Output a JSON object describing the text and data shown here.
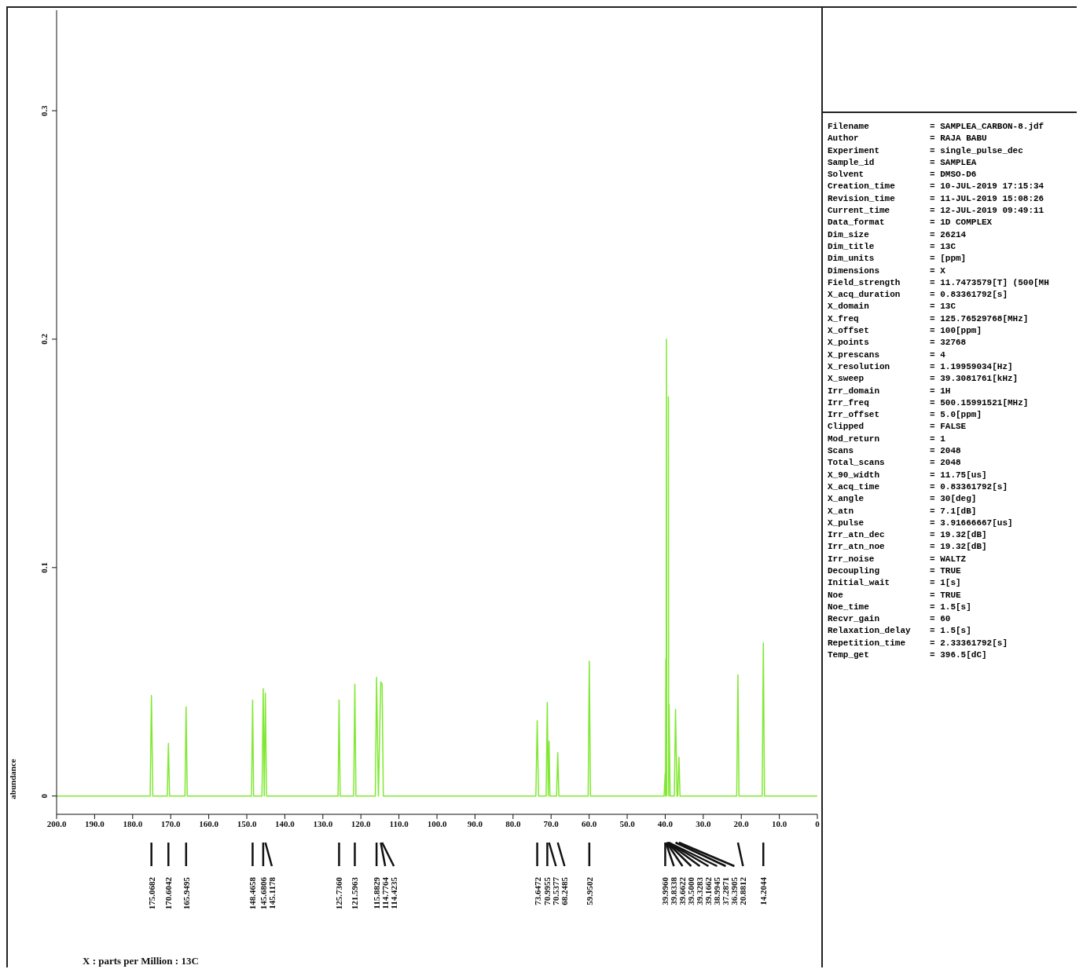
{
  "chart_data": {
    "type": "line",
    "ylabel": "abundance",
    "x": [
      200,
      175.4,
      175.0682,
      174.7,
      170.9,
      170.6042,
      170.3,
      166.25,
      165.9495,
      165.65,
      148.75,
      148.4658,
      148.2,
      146.0,
      145.6806,
      145.4,
      145.1178,
      144.8,
      126.0,
      125.736,
      125.45,
      121.9,
      121.5963,
      121.3,
      116.2,
      115.8829,
      115.4,
      114.7764,
      114.4235,
      114.1,
      74.0,
      73.6472,
      73.3,
      71.3,
      70.9955,
      70.75,
      70.5377,
      70.3,
      68.55,
      68.2485,
      67.95,
      60.25,
      59.9502,
      59.65,
      40.3,
      39.996,
      39.91,
      39.8338,
      39.75,
      39.6622,
      39.58,
      39.5,
      39.3283,
      39.1662,
      39.08,
      38.9945,
      38.7,
      37.6,
      37.2871,
      36.9,
      36.7,
      36.3905,
      36.1,
      21.2,
      20.8812,
      20.6,
      14.5,
      14.2044,
      13.9,
      0
    ],
    "series": [
      {
        "color": "#80e832",
        "values": [
          0,
          0,
          0.044,
          0,
          0,
          0.023,
          0,
          0,
          0.039,
          0,
          0,
          0.042,
          0,
          0,
          0.047,
          0,
          0.045,
          0,
          0,
          0.042,
          0,
          0,
          0.049,
          0,
          0,
          0.052,
          0,
          0.05,
          0.049,
          0,
          0,
          0.033,
          0,
          0,
          0.041,
          0,
          0.024,
          0,
          0,
          0.019,
          0,
          0,
          0.059,
          0,
          0,
          0.01,
          0,
          0.06,
          0,
          0.2,
          0,
          null,
          null,
          0.175,
          0,
          0.04,
          0,
          0,
          0.038,
          0,
          0,
          0.017,
          0,
          0,
          0.053,
          0,
          0,
          0.067,
          0,
          0
        ]
      }
    ],
    "xlim": [
      200,
      0
    ],
    "xticks": [
      {
        "value": 200,
        "label": "200.0"
      },
      {
        "value": 190,
        "label": "190.0"
      },
      {
        "value": 180,
        "label": "180.0"
      },
      {
        "value": 170,
        "label": "170.0"
      },
      {
        "value": 160,
        "label": "160.0"
      },
      {
        "value": 150,
        "label": "150.0"
      },
      {
        "value": 140,
        "label": "140.0"
      },
      {
        "value": 130,
        "label": "130.0"
      },
      {
        "value": 120,
        "label": "120.0"
      },
      {
        "value": 110,
        "label": "110.0"
      },
      {
        "value": 100,
        "label": "100.0"
      },
      {
        "value": 90,
        "label": "90.0"
      },
      {
        "value": 80,
        "label": "80.0"
      },
      {
        "value": 70,
        "label": "70.0"
      },
      {
        "value": 60,
        "label": "60.0"
      },
      {
        "value": 50,
        "label": "50.0"
      },
      {
        "value": 40,
        "label": "40.0"
      },
      {
        "value": 30,
        "label": "30.0"
      },
      {
        "value": 20,
        "label": "20.0"
      },
      {
        "value": 10,
        "label": "10.0"
      },
      0
    ],
    "ylim": [
      -0.008,
      0.344
    ],
    "yticks": [
      0,
      0.1,
      0.2,
      0.3
    ],
    "marker": "none",
    "line_style": "solid",
    "annotations": [
      "175.0682",
      "170.6042",
      "165.9495",
      "148.4658",
      "145.6806",
      "145.1178",
      "125.7360",
      "121.5963",
      "115.8829",
      "114.7764",
      "114.4235",
      "73.6472",
      "70.9955",
      "70.5377",
      "68.2485",
      "59.9502",
      "39.9960",
      "39.8338",
      "39.6622",
      "39.5000",
      "39.3283",
      "39.1662",
      "38.9945",
      "37.2871",
      "36.3905",
      "20.8812",
      "14.2044",
      "X : parts per Million : 13C",
      "Filename = SAMPLEA_CARBON-8.jdf",
      "Author = RAJA BABU",
      "Experiment = single_pulse_dec",
      "Sample_id = SAMPLEA",
      "Solvent = DMSO-D6",
      "Creation_time = 10-JUL-2019 17:15:34",
      "Revision_time = 11-JUL-2019 15:08:26",
      "Current_time = 12-JUL-2019 09:49:11",
      "Data_format = 1D COMPLEX",
      "Dim_size = 26214",
      "Dim_title = 13C",
      "Dim_units = [ppm]",
      "Dimensions = X",
      "Field_strength = 11.7473579[T] (500[MH",
      "X_acq_duration = 0.83361792[s]",
      "X_domain = 13C",
      "X_freq = 125.76529768[MHz]",
      "X_offset = 100[ppm]",
      "X_points = 32768",
      "X_prescans = 4",
      "X_resolution = 1.19959034[Hz]",
      "X_sweep = 39.3081761[kHz]",
      "Irr_domain = 1H",
      "Irr_freq = 500.15991521[MHz]",
      "Irr_offset = 5.0[ppm]",
      "Clipped = FALSE",
      "Mod_return = 1",
      "Scans = 2048",
      "Total_scans = 2048",
      "X_90_width = 11.75[us]",
      "X_acq_time = 0.83361792[s]",
      "X_angle = 30[deg]",
      "X_atn = 7.1[dB]",
      "X_pulse = 3.91666667[us]",
      "Irr_atn_dec = 19.32[dB]",
      "Irr_atn_noe = 19.32[dB]",
      "Irr_noise = WALTZ",
      "Decoupling = TRUE",
      "Initial_wait = 1[s]",
      "Noe = TRUE",
      "Noe_time = 1.5[s]",
      "Recvr_gain = 60",
      "Relaxation_delay = 1.5[s]",
      "Repetition_time = 2.33361792[s]",
      "Temp_get = 396.5[dC]"
    ]
  }
}
